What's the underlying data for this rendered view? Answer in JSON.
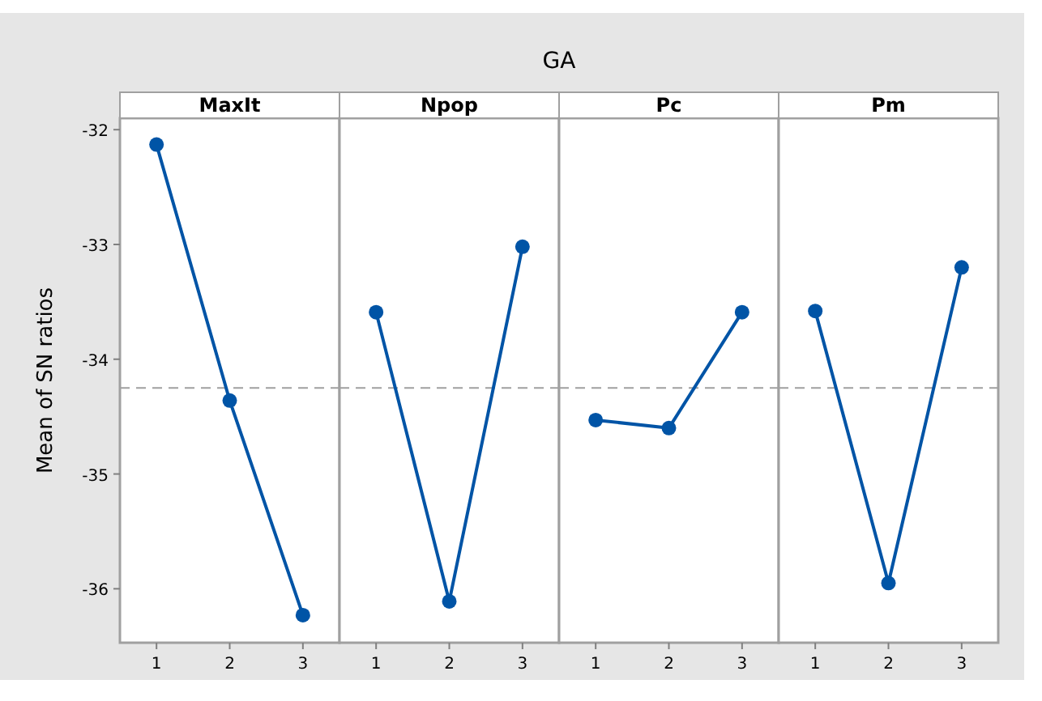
{
  "chart_data": [
    {
      "type": "line",
      "annotations": [
        "GA"
      ],
      "title": "MaxIt",
      "ylabel": "Mean of SN ratios",
      "categories": [
        "1",
        "2",
        "3"
      ],
      "series": [
        {
          "color": "#0054a6",
          "values": [
            -32.13,
            -34.36,
            -36.23
          ]
        }
      ],
      "ylim": [
        -36.47,
        -31.9
      ],
      "yticks": [
        -32,
        -33,
        -34,
        -35,
        -36
      ],
      "grid": false,
      "marker": "circle",
      "ref_lines": [
        {
          "axis": "y",
          "value": -34.25,
          "color": "#a0a0a0",
          "line_style": "dashed"
        }
      ]
    },
    {
      "type": "line",
      "title": "Npop",
      "categories": [
        "1",
        "2",
        "3"
      ],
      "series": [
        {
          "color": "#0054a6",
          "values": [
            -33.59,
            -36.11,
            -33.02
          ]
        }
      ],
      "ylim": [
        -36.47,
        -31.9
      ],
      "tick_labels": "x",
      "grid": false,
      "marker": "circle",
      "ref_lines": [
        {
          "axis": "y",
          "value": -34.25,
          "color": "#a0a0a0",
          "line_style": "dashed"
        }
      ]
    },
    {
      "type": "line",
      "title": "Pc",
      "categories": [
        "1",
        "2",
        "3"
      ],
      "series": [
        {
          "color": "#0054a6",
          "values": [
            -34.53,
            -34.6,
            -33.59
          ]
        }
      ],
      "ylim": [
        -36.47,
        -31.9
      ],
      "tick_labels": "x",
      "grid": false,
      "marker": "circle",
      "ref_lines": [
        {
          "axis": "y",
          "value": -34.25,
          "color": "#a0a0a0",
          "line_style": "dashed"
        }
      ]
    },
    {
      "type": "line",
      "title": "Pm",
      "categories": [
        "1",
        "2",
        "3"
      ],
      "series": [
        {
          "color": "#0054a6",
          "values": [
            -33.58,
            -35.95,
            -33.2
          ]
        }
      ],
      "ylim": [
        -36.47,
        -31.9
      ],
      "tick_labels": "x",
      "grid": false,
      "marker": "circle",
      "ref_lines": [
        {
          "axis": "y",
          "value": -34.25,
          "color": "#a0a0a0",
          "line_style": "dashed"
        }
      ]
    }
  ]
}
